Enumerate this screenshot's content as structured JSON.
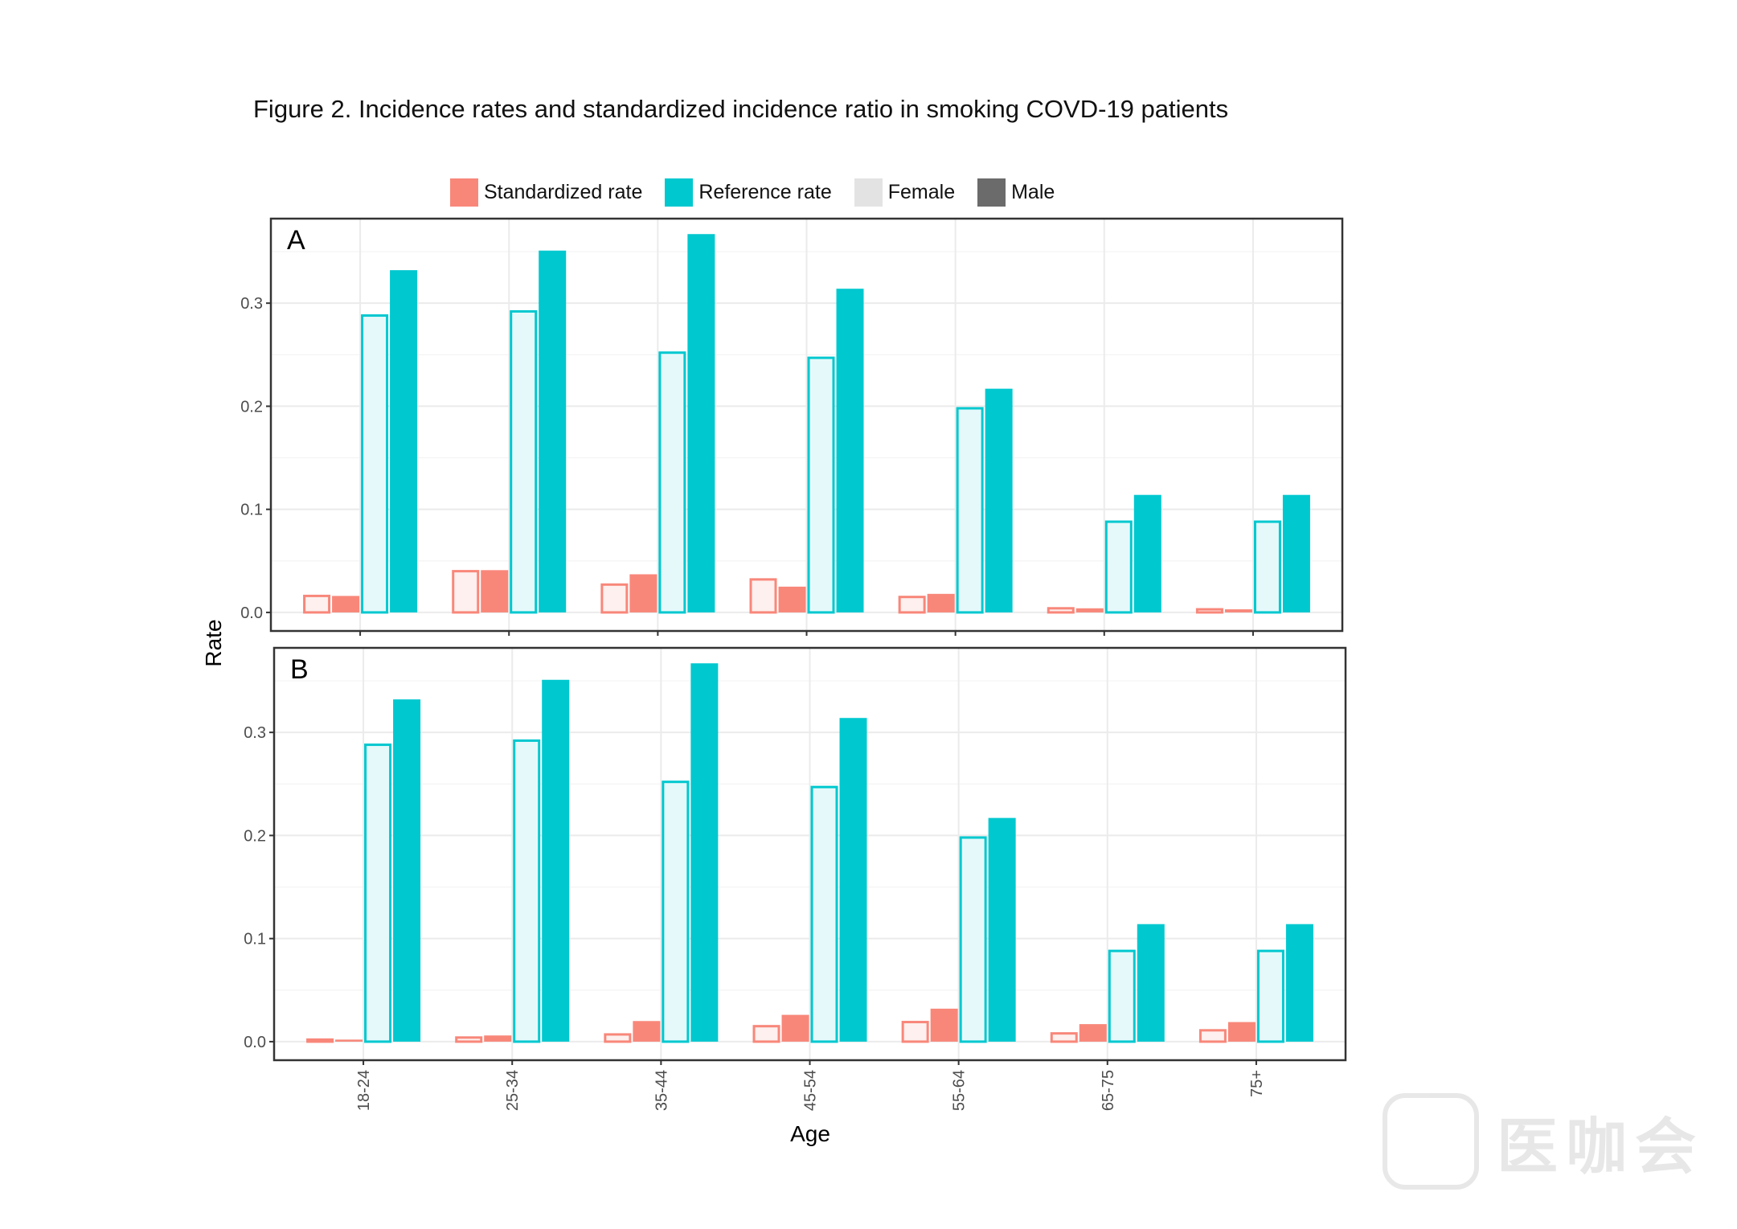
{
  "figure_title": "Figure 2. Incidence rates and standardized incidence ratio in smoking COVD-19 patients",
  "legend": {
    "standardized": {
      "label": "Standardized rate",
      "color": "#f8877a"
    },
    "reference": {
      "label": "Reference rate",
      "color": "#00c8cf"
    },
    "female": {
      "label": "Female",
      "color": "#e3e3e3"
    },
    "male": {
      "label": "Male",
      "color": "#6b6b6b"
    }
  },
  "watermark": {
    "text": "医咖会"
  },
  "chart_data": [
    {
      "type": "bar",
      "panel_label": "A",
      "categories": [
        "18-24",
        "25-34",
        "35-44",
        "45-54",
        "55-64",
        "65-75",
        "75+"
      ],
      "series": [
        {
          "name": "Standardized rate - Female",
          "values": [
            0.016,
            0.04,
            0.027,
            0.032,
            0.015,
            0.004,
            0.003
          ]
        },
        {
          "name": "Standardized rate - Male",
          "values": [
            0.016,
            0.041,
            0.037,
            0.025,
            0.018,
            0.004,
            0.003
          ]
        },
        {
          "name": "Reference rate - Female",
          "values": [
            0.288,
            0.292,
            0.252,
            0.247,
            0.198,
            0.088,
            0.088
          ]
        },
        {
          "name": "Reference rate - Male",
          "values": [
            0.332,
            0.351,
            0.367,
            0.314,
            0.217,
            0.114,
            0.114
          ]
        }
      ],
      "yticks": [
        0.0,
        0.1,
        0.2,
        0.3
      ],
      "ytick_labels": [
        "0.0",
        "0.1",
        "0.2",
        "0.3"
      ],
      "ylim": [
        -0.018,
        0.382
      ],
      "xlabel": "Age",
      "ylabel": "Rate",
      "grid": true
    },
    {
      "type": "bar",
      "panel_label": "B",
      "categories": [
        "18-24",
        "25-34",
        "35-44",
        "45-54",
        "55-64",
        "65-75",
        "75+"
      ],
      "series": [
        {
          "name": "Standardized rate - Female",
          "values": [
            0.002,
            0.004,
            0.007,
            0.015,
            0.019,
            0.008,
            0.011
          ]
        },
        {
          "name": "Standardized rate - Male",
          "values": [
            0.002,
            0.006,
            0.02,
            0.026,
            0.032,
            0.017,
            0.019
          ]
        },
        {
          "name": "Reference rate - Female",
          "values": [
            0.288,
            0.292,
            0.252,
            0.247,
            0.198,
            0.088,
            0.088
          ]
        },
        {
          "name": "Reference rate - Male",
          "values": [
            0.332,
            0.351,
            0.367,
            0.314,
            0.217,
            0.114,
            0.114
          ]
        }
      ],
      "yticks": [
        0.0,
        0.1,
        0.2,
        0.3
      ],
      "ytick_labels": [
        "0.0",
        "0.1",
        "0.2",
        "0.3"
      ],
      "ylim": [
        -0.018,
        0.382
      ],
      "xlabel": "Age",
      "ylabel": "Rate",
      "grid": true
    }
  ]
}
